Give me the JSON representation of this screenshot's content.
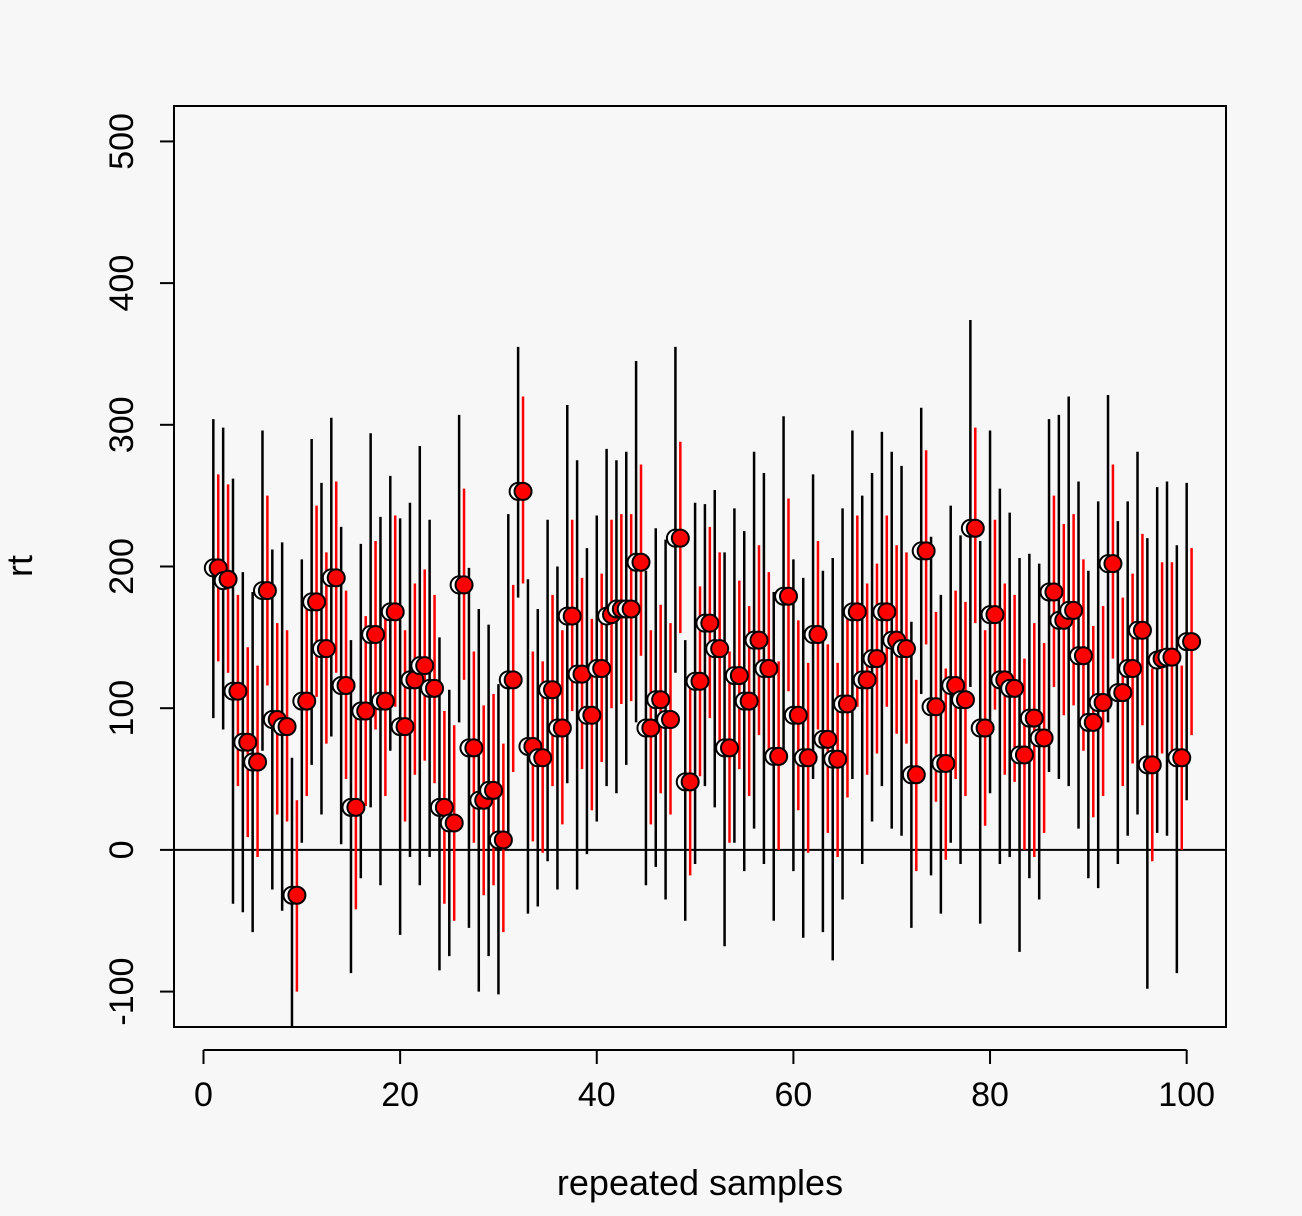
{
  "chart_data": {
    "type": "scatter",
    "title": "",
    "xlabel": "repeated samples",
    "ylabel": "rt",
    "xlim": [
      -3,
      104
    ],
    "ylim": [
      -125,
      525
    ],
    "x_ticks": [
      0,
      20,
      40,
      60,
      80,
      100
    ],
    "x_tick_labels": [
      "0",
      "20",
      "40",
      "60",
      "80",
      "100"
    ],
    "y_ticks": [
      -100,
      0,
      100,
      200,
      300,
      400,
      500
    ],
    "y_tick_labels": [
      "-100",
      "0",
      "100",
      "200",
      "300",
      "400",
      "500"
    ],
    "reference_line": 0,
    "grid": false,
    "legend": "none",
    "colors": {
      "background": "#f7f7f7",
      "series_a": "#000000",
      "series_b": "#ff0000"
    },
    "series": [
      {
        "x": [
          1,
          2,
          3,
          4,
          5,
          6,
          7,
          8,
          9,
          10,
          11,
          12,
          13,
          14,
          15,
          16,
          17,
          18,
          19,
          20,
          21,
          22,
          23,
          24,
          25,
          26,
          27,
          28,
          29,
          30,
          31,
          32,
          33,
          34,
          35,
          36,
          37,
          38,
          39,
          40,
          41,
          42,
          43,
          44,
          45,
          46,
          47,
          48,
          49,
          50,
          51,
          52,
          53,
          54,
          55,
          56,
          57,
          58,
          59,
          60,
          61,
          62,
          63,
          64,
          65,
          66,
          67,
          68,
          69,
          70,
          71,
          72,
          73,
          74,
          75,
          76,
          77,
          78,
          79,
          80,
          81,
          82,
          83,
          84,
          85,
          86,
          87,
          88,
          89,
          90,
          91,
          92,
          93,
          94,
          95,
          96,
          97,
          98,
          99,
          100
        ],
        "point": [
          199,
          190,
          112,
          76,
          62,
          183,
          92,
          87,
          -32,
          105,
          175,
          142,
          192,
          116,
          30,
          98,
          152,
          105,
          168,
          87,
          120,
          130,
          114,
          30,
          19,
          187,
          72,
          35,
          42,
          7,
          120,
          253,
          73,
          65,
          113,
          86,
          165,
          124,
          95,
          128,
          165,
          170,
          170,
          203,
          86,
          106,
          92,
          220,
          48,
          119,
          160,
          142,
          72,
          123,
          105,
          148,
          128,
          66,
          179,
          95,
          65,
          152,
          78,
          64,
          103,
          168,
          120,
          135,
          168,
          148,
          142,
          53,
          211,
          101,
          61,
          116,
          106,
          227,
          86,
          166,
          120,
          114,
          67,
          93,
          79,
          182,
          162,
          169,
          137,
          90,
          104,
          202,
          111,
          128,
          155,
          60,
          134,
          136,
          65,
          147
        ],
        "lower": [
          93,
          85,
          -38,
          -44,
          -58,
          70,
          -28,
          -43,
          -125,
          5,
          60,
          25,
          80,
          4,
          -87,
          -20,
          30,
          -25,
          70,
          -60,
          -5,
          -25,
          -5,
          -85,
          -75,
          90,
          -55,
          -100,
          -75,
          -102,
          5,
          178,
          -45,
          -40,
          -8,
          -28,
          47,
          -28,
          -3,
          20,
          45,
          40,
          60,
          90,
          -25,
          -12,
          -35,
          125,
          -50,
          -10,
          45,
          30,
          -68,
          5,
          -15,
          15,
          -10,
          -50,
          65,
          -15,
          -62,
          50,
          -58,
          -78,
          -35,
          50,
          -10,
          20,
          45,
          15,
          10,
          -55,
          110,
          -18,
          -45,
          5,
          -10,
          115,
          -52,
          40,
          -10,
          -5,
          -72,
          -20,
          -35,
          55,
          50,
          45,
          15,
          -20,
          -27,
          90,
          -10,
          10,
          25,
          -98,
          12,
          10,
          -87,
          35
        ],
        "upper": [
          304,
          298,
          262,
          196,
          182,
          296,
          212,
          217,
          65,
          205,
          290,
          259,
          305,
          228,
          148,
          216,
          294,
          235,
          264,
          234,
          245,
          285,
          233,
          150,
          113,
          307,
          199,
          170,
          159,
          117,
          237,
          355,
          191,
          170,
          233,
          200,
          314,
          275,
          213,
          236,
          283,
          275,
          281,
          345,
          197,
          227,
          219,
          355,
          148,
          245,
          244,
          254,
          210,
          241,
          225,
          281,
          266,
          182,
          306,
          205,
          192,
          265,
          197,
          206,
          241,
          296,
          250,
          266,
          295,
          281,
          271,
          161,
          312,
          221,
          180,
          243,
          222,
          374,
          218,
          296,
          255,
          238,
          206,
          209,
          202,
          304,
          307,
          320,
          260,
          197,
          246,
          321,
          232,
          246,
          281,
          220,
          256,
          260,
          215,
          259
        ]
      },
      {
        "x": [
          1.5,
          2.5,
          3.5,
          4.5,
          5.5,
          6.5,
          7.5,
          8.5,
          9.5,
          10.5,
          11.5,
          12.5,
          13.5,
          14.5,
          15.5,
          16.5,
          17.5,
          18.5,
          19.5,
          20.5,
          21.5,
          22.5,
          23.5,
          24.5,
          25.5,
          26.5,
          27.5,
          28.5,
          29.5,
          30.5,
          31.5,
          32.5,
          33.5,
          34.5,
          35.5,
          36.5,
          37.5,
          38.5,
          39.5,
          40.5,
          41.5,
          42.5,
          43.5,
          44.5,
          45.5,
          46.5,
          47.5,
          48.5,
          49.5,
          50.5,
          51.5,
          52.5,
          53.5,
          54.5,
          55.5,
          56.5,
          57.5,
          58.5,
          59.5,
          60.5,
          61.5,
          62.5,
          63.5,
          64.5,
          65.5,
          66.5,
          67.5,
          68.5,
          69.5,
          70.5,
          71.5,
          72.5,
          73.5,
          74.5,
          75.5,
          76.5,
          77.5,
          78.5,
          79.5,
          80.5,
          81.5,
          82.5,
          83.5,
          84.5,
          85.5,
          86.5,
          87.5,
          88.5,
          89.5,
          90.5,
          91.5,
          92.5,
          93.5,
          94.5,
          95.5,
          96.5,
          97.5,
          98.5,
          99.5,
          100.5
        ],
        "point": [
          199,
          191,
          112,
          76,
          62,
          183,
          92,
          87,
          -32,
          105,
          175,
          142,
          192,
          116,
          30,
          98,
          152,
          105,
          168,
          87,
          120,
          130,
          114,
          30,
          19,
          187,
          72,
          35,
          42,
          7,
          120,
          253,
          73,
          65,
          113,
          86,
          165,
          124,
          95,
          128,
          166,
          170,
          170,
          203,
          86,
          106,
          92,
          220,
          48,
          119,
          160,
          142,
          72,
          123,
          105,
          148,
          128,
          66,
          179,
          95,
          65,
          152,
          78,
          64,
          103,
          168,
          120,
          135,
          168,
          148,
          142,
          53,
          211,
          101,
          61,
          116,
          106,
          227,
          86,
          166,
          120,
          114,
          67,
          93,
          79,
          182,
          162,
          169,
          137,
          90,
          104,
          202,
          111,
          128,
          155,
          60,
          135,
          136,
          65,
          147
        ],
        "lower": [
          133,
          125,
          45,
          9,
          -5,
          116,
          25,
          20,
          -100,
          38,
          108,
          75,
          125,
          50,
          -42,
          31,
          85,
          38,
          101,
          20,
          53,
          63,
          47,
          -38,
          -50,
          120,
          5,
          -32,
          -25,
          -58,
          55,
          188,
          6,
          -2,
          45,
          18,
          98,
          57,
          28,
          62,
          100,
          103,
          105,
          137,
          18,
          40,
          25,
          153,
          -18,
          52,
          93,
          75,
          5,
          57,
          38,
          81,
          62,
          0,
          112,
          28,
          -2,
          85,
          12,
          -5,
          37,
          101,
          53,
          68,
          101,
          82,
          75,
          -15,
          145,
          34,
          -7,
          50,
          38,
          160,
          17,
          99,
          53,
          48,
          0,
          -5,
          12,
          115,
          95,
          102,
          70,
          23,
          38,
          135,
          45,
          61,
          88,
          -8,
          68,
          70,
          0,
          81
        ],
        "upper": [
          265,
          258,
          180,
          143,
          130,
          250,
          160,
          155,
          35,
          172,
          243,
          210,
          260,
          183,
          98,
          165,
          218,
          172,
          236,
          155,
          188,
          198,
          180,
          98,
          88,
          255,
          140,
          102,
          110,
          75,
          187,
          320,
          140,
          133,
          180,
          155,
          233,
          192,
          163,
          195,
          233,
          237,
          237,
          272,
          155,
          173,
          160,
          288,
          115,
          186,
          228,
          210,
          140,
          190,
          172,
          215,
          196,
          133,
          248,
          162,
          132,
          218,
          145,
          132,
          170,
          236,
          188,
          202,
          236,
          215,
          210,
          120,
          282,
          168,
          128,
          183,
          175,
          298,
          155,
          233,
          188,
          180,
          135,
          160,
          146,
          250,
          230,
          237,
          205,
          158,
          172,
          272,
          178,
          195,
          223,
          128,
          203,
          203,
          130,
          213
        ]
      }
    ]
  }
}
